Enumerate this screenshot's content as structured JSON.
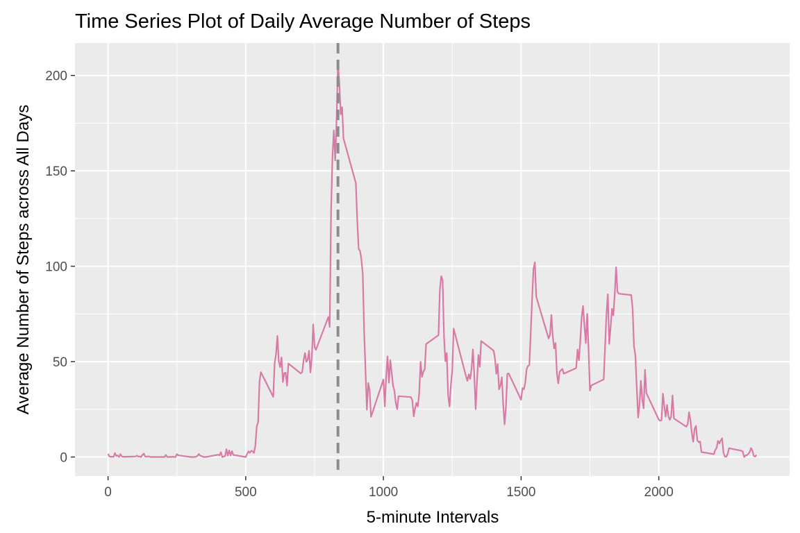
{
  "chart_data": {
    "type": "line",
    "title": "Time Series Plot of Daily Average Number of Steps",
    "xlabel": "5-minute Intervals",
    "ylabel": "Average Number of Steps across All Days",
    "xlim": [
      -120,
      2475
    ],
    "ylim": [
      -10,
      217
    ],
    "x_ticks": [
      0,
      500,
      1000,
      1500,
      2000
    ],
    "x_tick_labels": [
      "0",
      "500",
      "1000",
      "1500",
      "2000"
    ],
    "y_ticks": [
      0,
      50,
      100,
      150,
      200
    ],
    "y_tick_labels": [
      "0",
      "50",
      "100",
      "150",
      "200"
    ],
    "grid": true,
    "reference_line": {
      "x": 835,
      "style": "dashed",
      "color": "#8c8c8c"
    },
    "series": [
      {
        "color": "#d87aa5",
        "points": [
          [
            0,
            1.7
          ],
          [
            5,
            0.3
          ],
          [
            10,
            0.1
          ],
          [
            15,
            0.2
          ],
          [
            20,
            0.1
          ],
          [
            25,
            2.1
          ],
          [
            30,
            0.5
          ],
          [
            35,
            0.9
          ],
          [
            40,
            0
          ],
          [
            45,
            1.5
          ],
          [
            50,
            0.3
          ],
          [
            55,
            0.1
          ],
          [
            100,
            0.3
          ],
          [
            105,
            0.7
          ],
          [
            110,
            0.2
          ],
          [
            115,
            0.3
          ],
          [
            120,
            0
          ],
          [
            125,
            1.1
          ],
          [
            130,
            1.8
          ],
          [
            135,
            0.2
          ],
          [
            140,
            0.2
          ],
          [
            145,
            0.3
          ],
          [
            150,
            0.3
          ],
          [
            155,
            0
          ],
          [
            200,
            0
          ],
          [
            205,
            0
          ],
          [
            210,
            1.1
          ],
          [
            215,
            0
          ],
          [
            220,
            0
          ],
          [
            225,
            0.1
          ],
          [
            230,
            0
          ],
          [
            235,
            0.2
          ],
          [
            240,
            0
          ],
          [
            245,
            0
          ],
          [
            250,
            1.5
          ],
          [
            255,
            0.9
          ],
          [
            300,
            0
          ],
          [
            305,
            0
          ],
          [
            310,
            0
          ],
          [
            315,
            0
          ],
          [
            320,
            0.2
          ],
          [
            325,
            0.6
          ],
          [
            330,
            1.6
          ],
          [
            335,
            0.6
          ],
          [
            340,
            0.5
          ],
          [
            345,
            0.1
          ],
          [
            350,
            0
          ],
          [
            355,
            0
          ],
          [
            400,
            1.2
          ],
          [
            405,
            0.9
          ],
          [
            410,
            2.6
          ],
          [
            415,
            0
          ],
          [
            420,
            0.3
          ],
          [
            425,
            0.4
          ],
          [
            430,
            4.1
          ],
          [
            435,
            0.7
          ],
          [
            440,
            3.5
          ],
          [
            445,
            0.8
          ],
          [
            450,
            3.1
          ],
          [
            455,
            1.1
          ],
          [
            500,
            0
          ],
          [
            505,
            1.6
          ],
          [
            510,
            3
          ],
          [
            515,
            2.2
          ],
          [
            520,
            3.3
          ],
          [
            525,
            3
          ],
          [
            530,
            2.1
          ],
          [
            535,
            6.1
          ],
          [
            540,
            16
          ],
          [
            545,
            18.3
          ],
          [
            550,
            39.5
          ],
          [
            555,
            44.5
          ],
          [
            600,
            31.5
          ],
          [
            605,
            49.3
          ],
          [
            610,
            53.8
          ],
          [
            615,
            63.5
          ],
          [
            620,
            50
          ],
          [
            625,
            47.1
          ],
          [
            630,
            52.2
          ],
          [
            635,
            39.3
          ],
          [
            640,
            44
          ],
          [
            645,
            44.2
          ],
          [
            650,
            37.4
          ],
          [
            655,
            49
          ],
          [
            700,
            43.8
          ],
          [
            705,
            44.4
          ],
          [
            710,
            50.5
          ],
          [
            715,
            54.5
          ],
          [
            720,
            49.9
          ],
          [
            725,
            51
          ],
          [
            730,
            55.7
          ],
          [
            735,
            44.3
          ],
          [
            740,
            52.3
          ],
          [
            745,
            69.5
          ],
          [
            750,
            57.8
          ],
          [
            755,
            56.2
          ],
          [
            800,
            73.4
          ],
          [
            805,
            68.2
          ],
          [
            810,
            129.4
          ],
          [
            815,
            157.5
          ],
          [
            820,
            171.2
          ],
          [
            825,
            155.4
          ],
          [
            830,
            177.3
          ],
          [
            835,
            206.2
          ],
          [
            840,
            195.9
          ],
          [
            845,
            179.6
          ],
          [
            850,
            183.4
          ],
          [
            855,
            167
          ],
          [
            900,
            143.5
          ],
          [
            905,
            124
          ],
          [
            910,
            109.1
          ],
          [
            915,
            108.1
          ],
          [
            920,
            103.7
          ],
          [
            925,
            95.9
          ],
          [
            930,
            66.2
          ],
          [
            935,
            45.2
          ],
          [
            940,
            24.8
          ],
          [
            945,
            38.8
          ],
          [
            950,
            35
          ],
          [
            955,
            21.1
          ],
          [
            1000,
            40.6
          ],
          [
            1005,
            26.5
          ],
          [
            1010,
            42.4
          ],
          [
            1015,
            52.7
          ],
          [
            1020,
            38.9
          ],
          [
            1025,
            50.8
          ],
          [
            1030,
            44.3
          ],
          [
            1035,
            37.4
          ],
          [
            1040,
            34.7
          ],
          [
            1045,
            28.3
          ],
          [
            1050,
            25.1
          ],
          [
            1055,
            31.9
          ],
          [
            1100,
            31.4
          ],
          [
            1105,
            29.7
          ],
          [
            1110,
            21.3
          ],
          [
            1115,
            25.5
          ],
          [
            1120,
            28.4
          ],
          [
            1125,
            26.5
          ],
          [
            1130,
            33.4
          ],
          [
            1135,
            49.9
          ],
          [
            1140,
            42
          ],
          [
            1145,
            44.6
          ],
          [
            1150,
            46
          ],
          [
            1155,
            59.2
          ],
          [
            1200,
            63.9
          ],
          [
            1205,
            87.7
          ],
          [
            1210,
            94.8
          ],
          [
            1215,
            92.8
          ],
          [
            1220,
            63.4
          ],
          [
            1225,
            50.2
          ],
          [
            1230,
            54.5
          ],
          [
            1235,
            32.4
          ],
          [
            1240,
            26.5
          ],
          [
            1245,
            37.7
          ],
          [
            1250,
            45.1
          ],
          [
            1255,
            67.3
          ],
          [
            1300,
            42.3
          ],
          [
            1305,
            39.9
          ],
          [
            1310,
            43.3
          ],
          [
            1315,
            40.9
          ],
          [
            1320,
            46.2
          ],
          [
            1325,
            56.4
          ],
          [
            1330,
            42.8
          ],
          [
            1335,
            25.1
          ],
          [
            1340,
            39.9
          ],
          [
            1345,
            53.5
          ],
          [
            1350,
            47.3
          ],
          [
            1355,
            60.8
          ],
          [
            1400,
            55.8
          ],
          [
            1405,
            51.9
          ],
          [
            1410,
            43.6
          ],
          [
            1415,
            48.7
          ],
          [
            1420,
            35.5
          ],
          [
            1425,
            37.5
          ],
          [
            1430,
            41.8
          ],
          [
            1435,
            27.5
          ],
          [
            1440,
            17.1
          ],
          [
            1445,
            26.1
          ],
          [
            1450,
            43.6
          ],
          [
            1455,
            43.8
          ],
          [
            1500,
            30
          ],
          [
            1505,
            36.1
          ],
          [
            1510,
            35.5
          ],
          [
            1515,
            38.8
          ],
          [
            1520,
            46
          ],
          [
            1525,
            47.8
          ],
          [
            1530,
            48.1
          ],
          [
            1535,
            65.3
          ],
          [
            1540,
            82.9
          ],
          [
            1545,
            98.7
          ],
          [
            1550,
            102.1
          ],
          [
            1555,
            84
          ],
          [
            1600,
            62.1
          ],
          [
            1605,
            64.1
          ],
          [
            1610,
            74.5
          ],
          [
            1615,
            63.2
          ],
          [
            1620,
            56.9
          ],
          [
            1625,
            59.8
          ],
          [
            1630,
            43.9
          ],
          [
            1635,
            38.6
          ],
          [
            1640,
            44.7
          ],
          [
            1645,
            45.5
          ],
          [
            1650,
            46.2
          ],
          [
            1655,
            43.7
          ],
          [
            1700,
            46.6
          ],
          [
            1705,
            56.3
          ],
          [
            1710,
            50.7
          ],
          [
            1715,
            61.2
          ],
          [
            1720,
            73.4
          ],
          [
            1725,
            79.1
          ],
          [
            1730,
            68.9
          ],
          [
            1735,
            59.7
          ],
          [
            1740,
            75.1
          ],
          [
            1745,
            56.5
          ],
          [
            1750,
            34.8
          ],
          [
            1755,
            37.5
          ],
          [
            1800,
            40.7
          ],
          [
            1805,
            58
          ],
          [
            1810,
            74.7
          ],
          [
            1815,
            85.3
          ],
          [
            1820,
            59.3
          ],
          [
            1825,
            67.8
          ],
          [
            1830,
            77.7
          ],
          [
            1835,
            74.2
          ],
          [
            1840,
            85.3
          ],
          [
            1845,
            99.5
          ],
          [
            1850,
            86.6
          ],
          [
            1855,
            85.6
          ],
          [
            1900,
            84.9
          ],
          [
            1905,
            77.8
          ],
          [
            1910,
            58
          ],
          [
            1915,
            53.4
          ],
          [
            1920,
            36.3
          ],
          [
            1925,
            20.7
          ],
          [
            1930,
            27.4
          ],
          [
            1935,
            40
          ],
          [
            1940,
            30.2
          ],
          [
            1945,
            25.5
          ],
          [
            1950,
            45.7
          ],
          [
            1955,
            33.5
          ],
          [
            2000,
            19.6
          ],
          [
            2005,
            19
          ],
          [
            2010,
            19.3
          ],
          [
            2015,
            33.2
          ],
          [
            2020,
            26.8
          ],
          [
            2025,
            21.2
          ],
          [
            2030,
            27.3
          ],
          [
            2035,
            21.3
          ],
          [
            2040,
            19.5
          ],
          [
            2045,
            21.3
          ],
          [
            2050,
            32.3
          ],
          [
            2055,
            20.2
          ],
          [
            2100,
            15.9
          ],
          [
            2105,
            17.2
          ],
          [
            2110,
            23.5
          ],
          [
            2115,
            19.2
          ],
          [
            2120,
            12.5
          ],
          [
            2125,
            8
          ],
          [
            2130,
            14.7
          ],
          [
            2135,
            16.3
          ],
          [
            2140,
            8.7
          ],
          [
            2145,
            7.8
          ],
          [
            2150,
            8.1
          ],
          [
            2155,
            2.6
          ],
          [
            2200,
            1.5
          ],
          [
            2205,
            3.7
          ],
          [
            2210,
            4.8
          ],
          [
            2215,
            8.5
          ],
          [
            2220,
            7.1
          ],
          [
            2225,
            8.7
          ],
          [
            2230,
            9.8
          ],
          [
            2235,
            2.2
          ],
          [
            2240,
            0.3
          ],
          [
            2245,
            0.1
          ],
          [
            2250,
            1.6
          ],
          [
            2255,
            4.6
          ],
          [
            2300,
            3.3
          ],
          [
            2305,
            2.8
          ],
          [
            2310,
            0
          ],
          [
            2315,
            0.8
          ],
          [
            2320,
            1
          ],
          [
            2325,
            1.6
          ],
          [
            2330,
            2.6
          ],
          [
            2335,
            4.7
          ],
          [
            2340,
            3.3
          ],
          [
            2345,
            0.6
          ],
          [
            2350,
            0.2
          ],
          [
            2355,
            1.1
          ]
        ]
      }
    ]
  }
}
